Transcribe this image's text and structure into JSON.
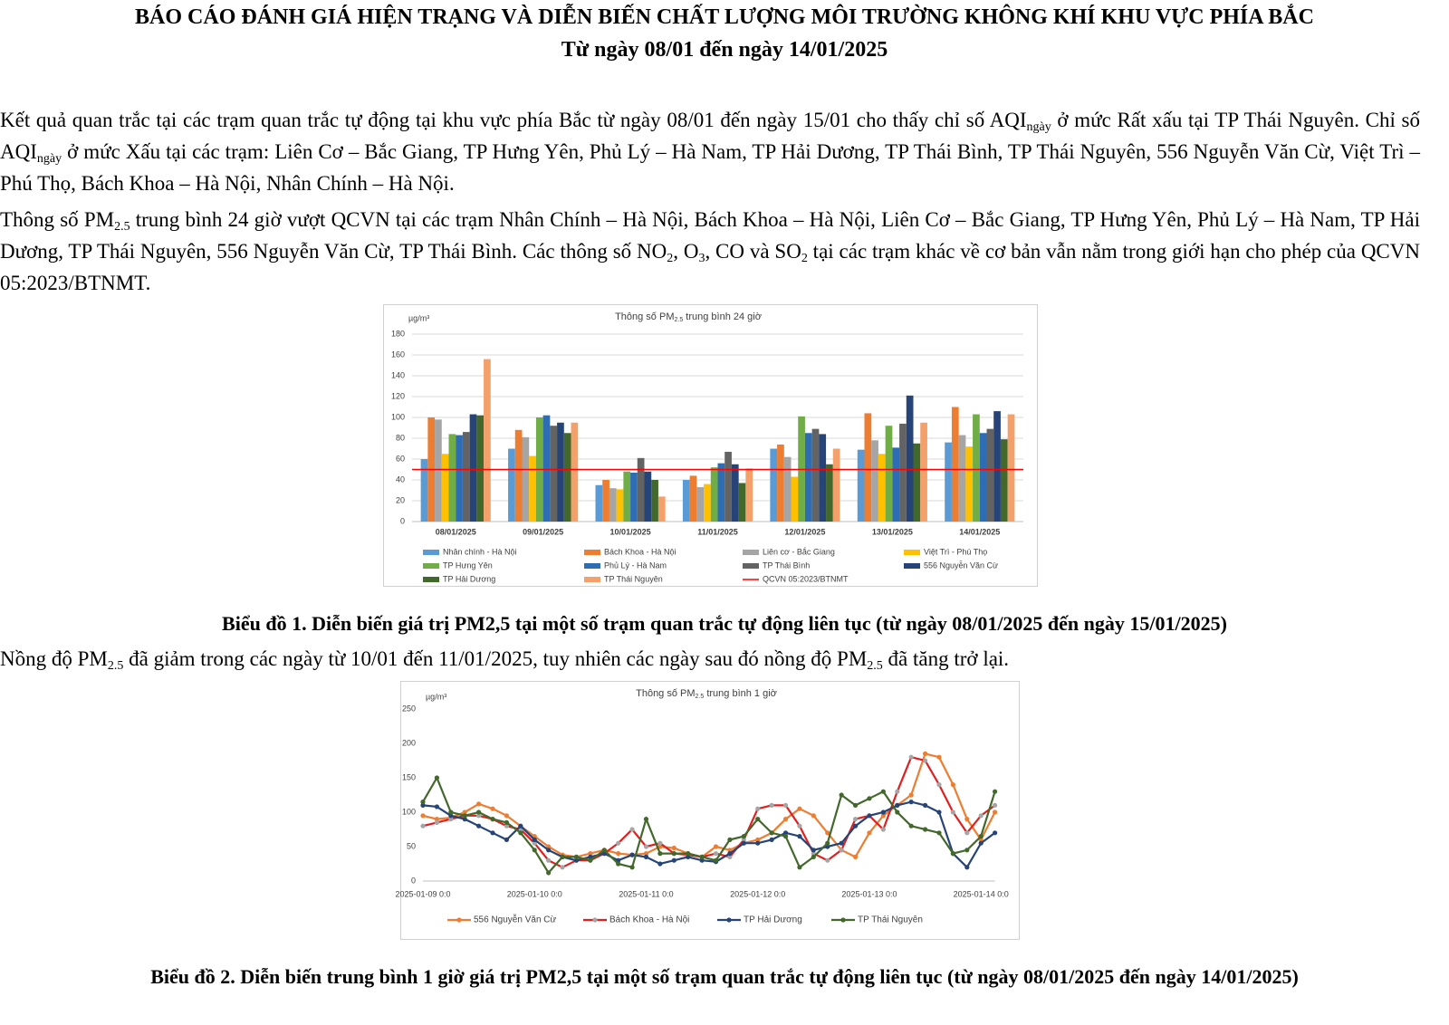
{
  "header": {
    "title": "BÁO CÁO ĐÁNH GIÁ HIỆN TRẠNG VÀ DIỄN BIẾN CHẤT LƯỢNG MÔI TRƯỜNG KHÔNG KHÍ KHU VỰC PHÍA BẮC",
    "subtitle": "Từ ngày 08/01 đến ngày 14/01/2025"
  },
  "paragraphs": [
    [
      "Kết quả quan trắc tại các trạm quan trắc tự động tại khu vực phía Bắc từ ngày 08/01 đến ngày 15/01 cho thấy chỉ số AQI",
      "ngày",
      " ở mức Rất xấu tại TP Thái Nguyên. Chỉ số AQI",
      "ngày",
      " ở mức Xấu tại các trạm: Liên Cơ – Bắc Giang, TP Hưng Yên, Phủ Lý – Hà Nam, TP Hải Dương, TP Thái Bình, TP Thái Nguyên, 556 Nguyễn Văn Cừ, Việt Trì – Phú Thọ, Bách Khoa – Hà Nội, Nhân Chính – Hà Nội."
    ],
    [
      "Thông số PM",
      "2.5",
      " trung bình 24 giờ vượt QCVN tại các trạm Nhân Chính – Hà Nội, Bách Khoa – Hà Nội, Liên Cơ – Bắc Giang, TP Hưng Yên, Phủ Lý – Hà Nam, TP Hải Dương, TP Thái Nguyên, 556 Nguyễn Văn Cừ, TP Thái Bình. Các thông số NO",
      "2",
      ", O",
      "3",
      ", CO và SO",
      "2",
      " tại các trạm khác về cơ bản vẫn nằm trong giới hạn cho phép của QCVN 05:2023/BTNMT."
    ],
    [
      "Nồng độ PM",
      "2.5",
      " đã giảm trong các ngày từ 10/01 đến 11/01/2025, tuy nhiên các ngày sau đó nồng độ PM",
      "2.5",
      " đã tăng trở lại."
    ]
  ],
  "captions": [
    "Biểu đồ 1. Diễn biến giá trị PM2,5 tại một số trạm quan trắc tự động liên tục (từ ngày 08/01/2025 đến ngày 15/01/2025)",
    "Biểu đồ 2. Diễn biến trung bình 1 giờ giá trị PM2,5 tại một số trạm quan trắc tự động liên tục (từ ngày 08/01/2025 đến ngày 14/01/2025)"
  ],
  "chart_data": [
    {
      "type": "bar",
      "title": [
        "Thông số PM",
        "2.5",
        " trung bình 24 giờ"
      ],
      "y_label": "µg/m³",
      "categories": [
        "08/01/2025",
        "09/01/2025",
        "10/01/2025",
        "11/01/2025",
        "12/01/2025",
        "13/01/2025",
        "14/01/2025"
      ],
      "series": [
        {
          "name": "Nhân chính - Hà Nội",
          "color": "#5b9bd5",
          "values": [
            60,
            70,
            35,
            40,
            70,
            69,
            76
          ]
        },
        {
          "name": "Bách Khoa - Hà Nội",
          "color": "#ed7d31",
          "values": [
            100,
            88,
            40,
            44,
            74,
            104,
            110
          ]
        },
        {
          "name": "Liên cơ - Bắc Giang",
          "color": "#a5a5a5",
          "values": [
            98,
            81,
            32,
            33,
            62,
            78,
            83
          ]
        },
        {
          "name": "Việt Trì - Phú Thọ",
          "color": "#ffc000",
          "values": [
            65,
            63,
            31,
            36,
            43,
            65,
            72
          ]
        },
        {
          "name": "TP Hưng Yên",
          "color": "#70ad47",
          "values": [
            84,
            100,
            48,
            52,
            101,
            92,
            103
          ]
        },
        {
          "name": "Phủ Lý - Hà Nam",
          "color": "#2e6db4",
          "values": [
            83,
            102,
            47,
            56,
            85,
            71,
            85
          ]
        },
        {
          "name": "TP Thái Bình",
          "color": "#636363",
          "values": [
            86,
            92,
            61,
            67,
            89,
            94,
            89
          ]
        },
        {
          "name": "556 Nguyễn Văn Cừ",
          "color": "#264478",
          "values": [
            103,
            95,
            48,
            55,
            84,
            121,
            106
          ]
        },
        {
          "name": "TP Hải Dương",
          "color": "#43682b",
          "values": [
            102,
            85,
            40,
            37,
            55,
            75,
            79
          ]
        },
        {
          "name": "TP Thái Nguyên",
          "color": "#f4a06a",
          "values": [
            156,
            95,
            24,
            51,
            70,
            95,
            103
          ]
        }
      ],
      "reference_line": {
        "name": "QCVN 05:2023/BTNMT",
        "value": 50,
        "color": "#ff0000"
      },
      "ylim": [
        0,
        180
      ],
      "yticks": [
        0,
        20,
        40,
        60,
        80,
        100,
        120,
        140,
        160,
        180
      ],
      "grid": true,
      "legend": "bottom"
    },
    {
      "type": "line",
      "title": [
        "Thông số PM",
        "2.5",
        " trung bình 1 giờ"
      ],
      "y_label": "µg/m³",
      "categories": [
        "2025-01-09 0:0",
        null,
        null,
        null,
        null,
        null,
        null,
        null,
        "2025-01-10 0:0",
        null,
        null,
        null,
        null,
        null,
        null,
        null,
        "2025-01-11 0:0",
        null,
        null,
        null,
        null,
        null,
        null,
        null,
        "2025-01-12 0:0",
        null,
        null,
        null,
        null,
        null,
        null,
        null,
        "2025-01-13 0:0",
        null,
        null,
        null,
        null,
        null,
        null,
        null,
        "2025-01-14 0:0",
        null
      ],
      "series": [
        {
          "name": "556 Nguyễn Văn Cừ",
          "color": "#ed7d31",
          "marker_color": "#ed7d31",
          "values": [
            95,
            90,
            92,
            100,
            112,
            105,
            95,
            80,
            65,
            50,
            38,
            35,
            40,
            45,
            40,
            38,
            40,
            50,
            48,
            40,
            35,
            50,
            45,
            55,
            60,
            70,
            90,
            105,
            95,
            70,
            45,
            35,
            70,
            95,
            110,
            125,
            185,
            180,
            140,
            90,
            60,
            100
          ]
        },
        {
          "name": "Bách Khoa - Hà Nội",
          "color": "#e02020",
          "marker_color": "#a5a5a5",
          "values": [
            80,
            85,
            90,
            95,
            95,
            90,
            80,
            75,
            55,
            30,
            20,
            30,
            30,
            40,
            55,
            75,
            50,
            55,
            40,
            38,
            35,
            40,
            35,
            60,
            105,
            110,
            110,
            80,
            40,
            30,
            45,
            90,
            95,
            75,
            130,
            180,
            175,
            140,
            100,
            70,
            95,
            110
          ]
        },
        {
          "name": "TP Hải Dương",
          "color": "#264478",
          "marker_color": "#264478",
          "values": [
            110,
            108,
            95,
            90,
            80,
            70,
            60,
            80,
            60,
            45,
            35,
            30,
            35,
            40,
            30,
            38,
            35,
            25,
            30,
            35,
            30,
            28,
            40,
            55,
            55,
            60,
            70,
            65,
            45,
            50,
            55,
            80,
            95,
            100,
            110,
            115,
            110,
            100,
            40,
            20,
            55,
            70
          ]
        },
        {
          "name": "TP Thái Nguyên",
          "color": "#43682b",
          "marker_color": "#43682b",
          "values": [
            115,
            150,
            100,
            95,
            100,
            90,
            85,
            70,
            45,
            12,
            35,
            35,
            30,
            45,
            25,
            20,
            90,
            40,
            40,
            40,
            35,
            30,
            60,
            65,
            90,
            70,
            65,
            20,
            35,
            55,
            125,
            110,
            120,
            130,
            100,
            80,
            75,
            70,
            40,
            45,
            65,
            130
          ]
        }
      ],
      "ylim": [
        0,
        250
      ],
      "yticks": [
        0,
        50,
        100,
        150,
        200,
        250
      ],
      "grid": false,
      "legend": "bottom"
    }
  ]
}
